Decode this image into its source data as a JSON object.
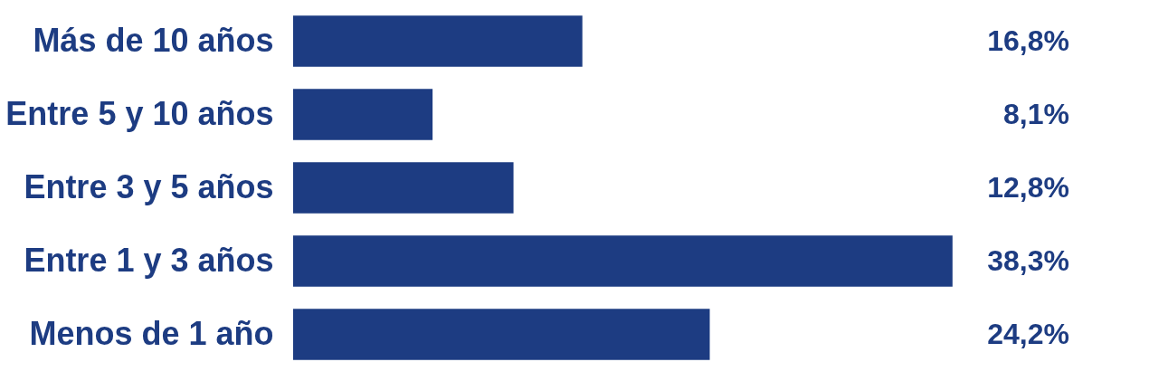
{
  "chart_data": {
    "type": "bar",
    "orientation": "horizontal",
    "categories": [
      "Más de 10 años",
      "Entre 5 y 10 años",
      "Entre 3 y 5 años",
      "Entre 1 y 3 años",
      "Menos de 1 año"
    ],
    "values": [
      16.8,
      8.1,
      12.8,
      38.3,
      24.2
    ],
    "color": "#1d3c82",
    "value_labels": [
      "16,8%",
      "8,1%",
      "12,8%",
      "38,3%",
      "24,2%"
    ]
  }
}
